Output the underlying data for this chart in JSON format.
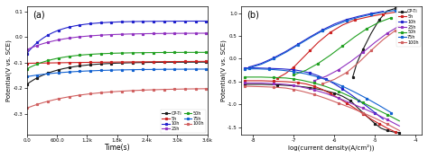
{
  "panel_a": {
    "title": "(a)",
    "xlabel": "Time(s)",
    "ylabel": "Potential(V vs. SCE)",
    "xlim": [
      0,
      3600
    ],
    "ylim": [
      -0.38,
      0.12
    ],
    "yticks": [
      -0.3,
      -0.2,
      -0.1,
      0.0,
      0.1
    ],
    "curves": {
      "CP-Ti": {
        "color": "#1a1a1a",
        "start": -0.185,
        "end": -0.098,
        "tau": 600
      },
      "5h": {
        "color": "#cc2020",
        "start": -0.103,
        "end": -0.092,
        "tau": 3000
      },
      "10h": {
        "color": "#2020cc",
        "start": -0.065,
        "end": 0.062,
        "tau": 500
      },
      "25h": {
        "color": "#9030c0",
        "start": -0.05,
        "end": 0.015,
        "tau": 700
      },
      "50h": {
        "color": "#20a020",
        "start": -0.125,
        "end": -0.06,
        "tau": 600
      },
      "75h": {
        "color": "#1060d0",
        "start": -0.155,
        "end": -0.125,
        "tau": 900
      },
      "100h": {
        "color": "#d06060",
        "start": -0.278,
        "end": -0.2,
        "tau": 1000
      }
    },
    "legend_order": [
      "CP-Ti",
      "5h",
      "10h",
      "25h",
      "50h",
      "75h",
      "100h"
    ]
  },
  "panel_b": {
    "title": "(b)",
    "xlabel": "log(current density(A/cm²))",
    "ylabel": "Potential(V vs. SCE)",
    "xlim": [
      -8.3,
      -3.85
    ],
    "ylim": [
      -1.65,
      1.15
    ],
    "yticks": [
      -1.5,
      -1.0,
      -0.5,
      0.0,
      0.5,
      1.0
    ],
    "xtick_vals": [
      -8,
      -7,
      -6,
      -5,
      -4
    ],
    "xtick_labels": [
      "-8",
      "-7",
      "-6",
      "-5",
      "-4"
    ],
    "legend_order": [
      "CP-Ti",
      "5h",
      "10h",
      "25h",
      "50h",
      "75h",
      "100h"
    ],
    "curves": {
      "CP-Ti": {
        "color": "#1a1a1a",
        "x": [
          -8.2,
          -7.8,
          -7.4,
          -7.0,
          -6.6,
          -6.3,
          -6.0,
          -5.8,
          -5.6,
          -5.45,
          -5.3,
          -5.15,
          -5.0,
          -4.85,
          -4.7,
          -4.55,
          -4.4
        ],
        "y": [
          -0.56,
          -0.56,
          -0.57,
          -0.59,
          -0.63,
          -0.68,
          -0.75,
          -0.82,
          -0.92,
          -1.05,
          -1.18,
          -1.3,
          -1.42,
          -1.52,
          -1.57,
          -1.6,
          -1.62
        ],
        "ax": [
          -5.55,
          -5.45,
          -5.3,
          -5.1,
          -4.9,
          -4.7,
          -4.5
        ],
        "ay": [
          -0.4,
          -0.1,
          0.2,
          0.55,
          0.85,
          1.05,
          1.1
        ]
      },
      "5h": {
        "color": "#cc2020",
        "x": [
          -8.2,
          -7.8,
          -7.5,
          -7.2,
          -6.9,
          -6.7,
          -6.5,
          -6.3,
          -6.1,
          -5.9,
          -5.7,
          -5.5,
          -5.3,
          -5.1,
          -4.9,
          -4.7,
          -4.5
        ],
        "y": [
          -0.48,
          -0.48,
          -0.49,
          -0.5,
          -0.52,
          -0.55,
          -0.6,
          -0.67,
          -0.76,
          -0.86,
          -0.97,
          -1.08,
          -1.2,
          -1.32,
          -1.42,
          -1.52,
          -1.6
        ],
        "ax": [
          -7.4,
          -7.2,
          -7.0,
          -6.8,
          -6.6,
          -6.4,
          -6.1,
          -5.8,
          -5.5,
          -5.1,
          -4.8,
          -4.5
        ],
        "ay": [
          -0.42,
          -0.32,
          -0.18,
          0.0,
          0.18,
          0.36,
          0.58,
          0.74,
          0.85,
          0.93,
          0.98,
          1.02
        ]
      },
      "10h": {
        "color": "#2020cc",
        "x": [
          -8.2,
          -7.9,
          -7.6,
          -7.3,
          -7.0,
          -6.8,
          -6.6,
          -6.4,
          -6.2,
          -6.0,
          -5.8,
          -5.6,
          -5.4,
          -5.2,
          -5.0,
          -4.8
        ],
        "y": [
          -0.2,
          -0.2,
          -0.21,
          -0.22,
          -0.24,
          -0.27,
          -0.31,
          -0.37,
          -0.45,
          -0.55,
          -0.66,
          -0.78,
          -0.91,
          -1.04,
          -1.18,
          -1.32
        ],
        "ax": [
          -8.1,
          -7.8,
          -7.5,
          -7.2,
          -6.9,
          -6.6,
          -6.3,
          -6.0,
          -5.7,
          -5.4,
          -5.1,
          -4.8
        ],
        "ay": [
          -0.18,
          -0.1,
          0.02,
          0.16,
          0.32,
          0.48,
          0.63,
          0.76,
          0.86,
          0.93,
          0.99,
          1.04
        ]
      },
      "25h": {
        "color": "#9030c0",
        "x": [
          -8.2,
          -7.8,
          -7.5,
          -7.2,
          -7.0,
          -6.8,
          -6.5,
          -6.2,
          -5.9,
          -5.6,
          -5.3,
          -5.0,
          -4.7,
          -4.4
        ],
        "y": [
          -0.53,
          -0.53,
          -0.54,
          -0.56,
          -0.58,
          -0.62,
          -0.68,
          -0.76,
          -0.86,
          -0.97,
          -1.08,
          -1.2,
          -1.33,
          -1.47
        ],
        "ax": [
          -6.5,
          -6.2,
          -5.9,
          -5.6,
          -5.3,
          -5.0,
          -4.7,
          -4.4
        ],
        "ay": [
          -0.48,
          -0.38,
          -0.24,
          -0.06,
          0.14,
          0.36,
          0.56,
          0.72
        ]
      },
      "50h": {
        "color": "#20a020",
        "x": [
          -8.2,
          -7.8,
          -7.5,
          -7.2,
          -7.0,
          -6.8,
          -6.5,
          -6.2,
          -5.9,
          -5.6,
          -5.3,
          -5.0,
          -4.7,
          -4.4
        ],
        "y": [
          -0.4,
          -0.4,
          -0.41,
          -0.42,
          -0.44,
          -0.47,
          -0.53,
          -0.61,
          -0.71,
          -0.83,
          -0.96,
          -1.09,
          -1.22,
          -1.36
        ],
        "ax": [
          -7.0,
          -6.7,
          -6.4,
          -6.1,
          -5.8,
          -5.5,
          -5.2,
          -4.9,
          -4.6
        ],
        "ay": [
          -0.35,
          -0.25,
          -0.1,
          0.08,
          0.28,
          0.48,
          0.66,
          0.8,
          0.9
        ]
      },
      "75h": {
        "color": "#1060d0",
        "x": [
          -8.2,
          -7.9,
          -7.6,
          -7.3,
          -7.0,
          -6.7,
          -6.4,
          -6.1,
          -5.8,
          -5.5,
          -5.2,
          -4.9,
          -4.6
        ],
        "y": [
          -0.22,
          -0.22,
          -0.23,
          -0.25,
          -0.28,
          -0.33,
          -0.4,
          -0.49,
          -0.6,
          -0.73,
          -0.87,
          -1.02,
          -1.18
        ],
        "ax": [
          -8.1,
          -7.8,
          -7.5,
          -7.2,
          -6.9,
          -6.6,
          -6.3,
          -6.0,
          -5.7,
          -5.4,
          -5.1,
          -4.8,
          -4.5
        ],
        "ay": [
          -0.2,
          -0.12,
          0.0,
          0.14,
          0.3,
          0.46,
          0.61,
          0.73,
          0.83,
          0.91,
          0.97,
          1.02,
          1.06
        ]
      },
      "100h": {
        "color": "#d06060",
        "x": [
          -8.2,
          -7.8,
          -7.5,
          -7.2,
          -7.0,
          -6.8,
          -6.5,
          -6.2,
          -5.9,
          -5.6,
          -5.3,
          -5.0,
          -4.7,
          -4.4
        ],
        "y": [
          -0.6,
          -0.61,
          -0.62,
          -0.64,
          -0.67,
          -0.71,
          -0.78,
          -0.87,
          -0.97,
          -1.07,
          -1.18,
          -1.3,
          -1.43,
          -1.57
        ],
        "ax": [
          -6.3,
          -6.0,
          -5.7,
          -5.4,
          -5.1,
          -4.8,
          -4.5
        ],
        "ay": [
          -0.55,
          -0.45,
          -0.3,
          -0.08,
          0.18,
          0.42,
          0.62
        ]
      }
    }
  }
}
